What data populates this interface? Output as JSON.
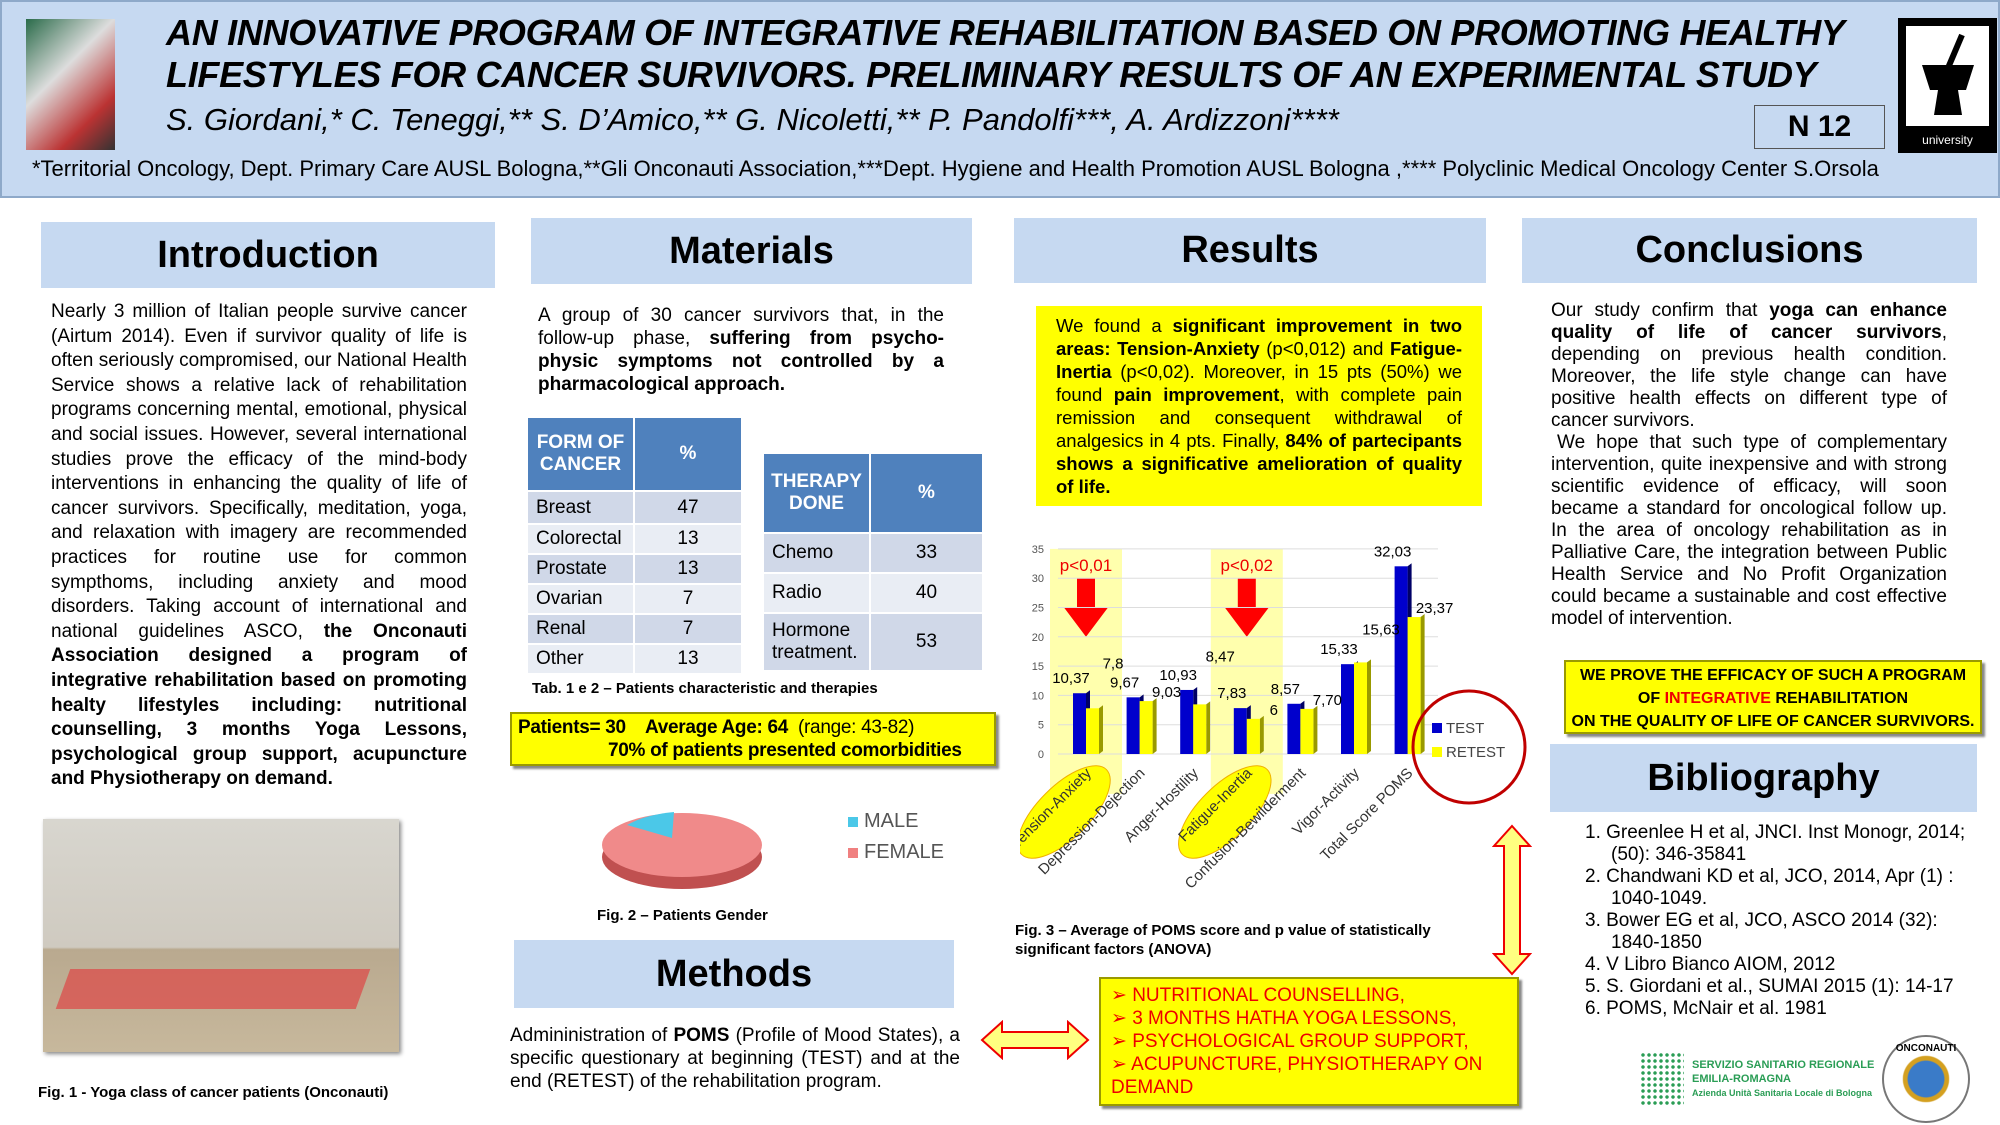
{
  "header": {
    "title_line1": "AN INNOVATIVE PROGRAM OF INTEGRATIVE REHABILITATION BASED ON PROMOTING HEALTHY",
    "title_line2": "LIFESTYLES FOR CANCER SURVIVORS. PRELIMINARY RESULTS OF AN EXPERIMENTAL STUDY",
    "authors": "S. Giordani,* C. Teneggi,** S. D’Amico,** G. Nicoletti,** P. Pandolfi***, A. Ardizzoni****",
    "affiliations": "*Territorial Oncology, Dept. Primary Care AUSL Bologna,**Gli Onconauti Association,***Dept. Hygiene and Health Promotion AUSL Bologna ,**** Polyclinic Medical Oncology Center S.Orsola",
    "poster_number": "N 12",
    "logo_label": "university"
  },
  "introduction": {
    "heading": "Introduction",
    "text_pre": "Nearly 3 million of Italian people survive cancer (Airtum 2014). Even if survivor quality of life is often seriously compromised, our National Health Service shows a relative lack of rehabilitation programs concerning mental, emotional, physical and social issues. However, several international studies prove the efficacy of the mind-body interventions in enhancing the quality of life of cancer survivors. Specifically, meditation, yoga, and relaxation with imagery are recommended practices for routine use for common sympthoms, including anxiety and mood disorders. Taking account of international and national guidelines ASCO, ",
    "text_bold": "the Onconauti Association designed a program of integrative rehabilitation based on promoting healty lifestyles including: nutritional counselling, 3 months Yoga Lessons, psychological group support, acupuncture and Physiotherapy on demand.",
    "fig_caption": "Fig. 1 -  Yoga class of cancer patients (Onconauti)"
  },
  "materials": {
    "heading": "Materials",
    "text_pre": "A group of 30 cancer survivors that, in the follow-up phase, ",
    "text_bold": "suffering from psycho-physic symptoms not controlled by a pharmacological approach.",
    "table1": {
      "headers": [
        "FORM OF CANCER",
        "%"
      ],
      "rows": [
        [
          "Breast",
          "47"
        ],
        [
          "Colorectal",
          "13"
        ],
        [
          "Prostate",
          "13"
        ],
        [
          "Ovarian",
          "7"
        ],
        [
          "Renal",
          "7"
        ],
        [
          "Other",
          "13"
        ]
      ]
    },
    "table2": {
      "headers": [
        "THERAPY DONE",
        "%"
      ],
      "rows": [
        [
          "Chemo",
          "33"
        ],
        [
          "Radio",
          "40"
        ],
        [
          "Hormone treatment.",
          "53"
        ]
      ]
    },
    "table_caption": "Tab. 1 e 2  – Patients characteristic and therapies",
    "summary_line1_a": "Patients= 30    Average Age: 64 ",
    "summary_line1_b": " (range: 43-82)",
    "summary_line2": "70% of patients presented comorbidities",
    "pie": {
      "legend": [
        "MALE",
        "FEMALE"
      ],
      "colors": [
        "#4bc8e8",
        "#f08080"
      ],
      "caption": "Fig. 2 – Patients Gender"
    }
  },
  "methods": {
    "heading": "Methods",
    "text_a": "Admininistration of ",
    "text_b": "POMS",
    "text_c": " (Profile of Mood States), a specific questionary at beginning (TEST) and at the end (RETEST) of the rehabilitation program.",
    "program_items": [
      "NUTRITIONAL COUNSELLING,",
      "3 MONTHS HATHA YOGA LESSONS,",
      "PSYCHOLOGICAL GROUP SUPPORT,",
      "ACUPUNCTURE, PHYSIOTHERAPY ON DEMAND"
    ]
  },
  "results": {
    "heading": "Results",
    "box": [
      {
        "t": "We found a ",
        "b": false
      },
      {
        "t": "significant improvement in two areas: Tension-Anxiety",
        "b": true
      },
      {
        "t": " (p<0,012) and ",
        "b": false
      },
      {
        "t": "Fatigue-Inertia",
        "b": true
      },
      {
        "t": " (p<0,02). Moreover, in 15 pts (50%) we found ",
        "b": false
      },
      {
        "t": "pain improvement",
        "b": true
      },
      {
        "t": ", with complete pain remission and consequent withdrawal of analgesics in 4 pts. Finally, ",
        "b": false
      },
      {
        "t": "84% of partecipants shows a significative amelioration of quality of life.",
        "b": true
      }
    ],
    "fig_caption": "Fig. 3 – Average of POMS score and p value of statistically significant factors (ANOVA)"
  },
  "chart_data": {
    "type": "bar",
    "categories": [
      "Tension-Anxiety",
      "Depression-Dejection",
      "Anger-Hostility",
      "Fatigue-Inertia",
      "Confusion-Bewilderment",
      "Vigor-Activity",
      "Total Score POMS"
    ],
    "series": [
      {
        "name": "TEST",
        "color": "#0000cc",
        "values": [
          10.37,
          9.67,
          10.93,
          7.83,
          8.57,
          15.33,
          32.03
        ],
        "labels": [
          "10,37",
          "9,67",
          "10,93",
          "7,83",
          "8,57",
          "15,33",
          "32,03"
        ]
      },
      {
        "name": "RETEST",
        "color": "#ffff00",
        "values": [
          7.8,
          9.03,
          8.47,
          6,
          7.7,
          15.63,
          23.37
        ],
        "labels": [
          "7,8",
          "9,03",
          "8,47",
          "6",
          "7,70",
          "15,63",
          "23,37"
        ]
      }
    ],
    "ylim": [
      0,
      35
    ],
    "yticks": [
      "0",
      "5",
      "10",
      "15",
      "20",
      "25",
      "30",
      "35"
    ],
    "annotations": [
      {
        "category": "Tension-Anxiety",
        "text": "p<0,01"
      },
      {
        "category": "Fatigue-Inertia",
        "text": "p<0,02"
      }
    ],
    "legend": "right",
    "grid": true
  },
  "conclusions": {
    "heading": "Conclusions",
    "p1": [
      {
        "t": "Our study confirm that ",
        "b": false
      },
      {
        "t": "yoga can enhance quality of life of cancer survivors",
        "b": true
      },
      {
        "t": ", depending on previous health condition. Moreover, the life style change can have positive health effects on different type of cancer survivors.",
        "b": false
      }
    ],
    "p2": "We hope that such type of complementary intervention, quite inexpensive and with strong scientific evidence of efficacy, will soon became a standard for oncological follow up. In the area of oncology rehabilitation as in Palliative Care, the integration between Public Health Service and No Profit Organization could became a sustainable and cost effective model of intervention.",
    "box_line1": "WE PROVE THE EFFICACY OF SUCH A PROGRAM",
    "box_line2_a": "OF ",
    "box_line2_red": "INTEGRATIVE",
    "box_line2_b": " REHABILITATION",
    "box_line3": "ON THE QUALITY OF LIFE OF CANCER SURVIVORS."
  },
  "bibliography": {
    "heading": "Bibliography",
    "items": [
      "Greenlee H et al, JNCI. Inst Monogr, 2014; (50): 346-35841",
      "Chandwani KD et al,  JCO, 2014, Apr (1) : 1040-1049.",
      "Bower EG et al, JCO, ASCO 2014 (32): 1840-1850",
      "V Libro Bianco AIOM, 2012",
      "S. Giordani et al., SUMAI 2015 (1): 14-17",
      "POMS, McNair et al. 1981"
    ],
    "logo_ssr": [
      "SERVIZIO SANITARIO REGIONALE",
      "EMILIA-ROMAGNA",
      "Azienda Unità Sanitaria Locale di Bologna"
    ],
    "logo_onconauti": "ONCONAUTI"
  }
}
